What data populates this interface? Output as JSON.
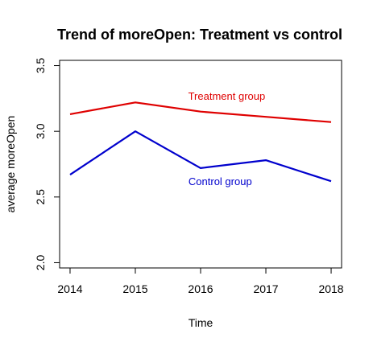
{
  "chart_data": {
    "type": "line",
    "title": "Trend of moreOpen: Treatment vs control",
    "xlabel": "Time",
    "ylabel": "average moreOpen",
    "x": [
      2014,
      2015,
      2016,
      2017,
      2018
    ],
    "xticks": [
      "2014",
      "2015",
      "2016",
      "2017",
      "2018"
    ],
    "yticks": [
      "2.0",
      "2.5",
      "3.0",
      "3.5"
    ],
    "xlim": [
      2013.84,
      2018.16
    ],
    "ylim": [
      1.96,
      3.54
    ],
    "grid": false,
    "legend": "none",
    "series": [
      {
        "name": "Treatment group",
        "values": [
          3.13,
          3.22,
          3.15,
          3.11,
          3.07
        ],
        "color": "#DF0000"
      },
      {
        "name": "Control group",
        "values": [
          2.67,
          3.0,
          2.72,
          2.78,
          2.62
        ],
        "color": "#0000CD"
      }
    ],
    "annotations": [
      {
        "text": "Treatment group",
        "x": 2016.4,
        "y": 3.24,
        "color": "#DF0000"
      },
      {
        "text": "Control group",
        "x": 2016.3,
        "y": 2.59,
        "color": "#0000CD"
      }
    ]
  }
}
